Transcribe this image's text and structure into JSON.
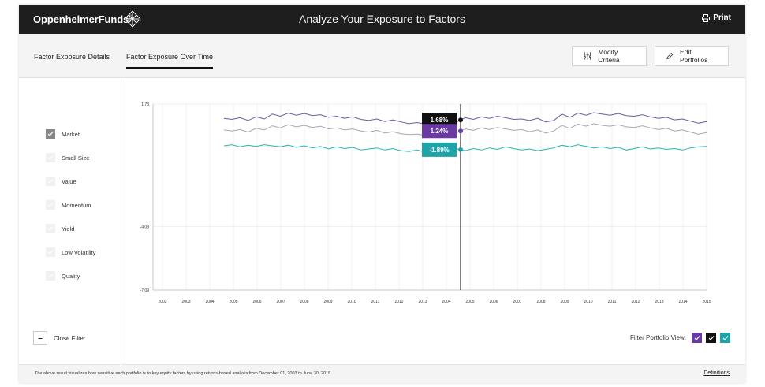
{
  "header": {
    "brand": "OppenheimerFunds",
    "brand_mark": "®",
    "title": "Analyze Your Exposure to Factors",
    "print_label": "Print"
  },
  "tabs": [
    {
      "label": "Factor Exposure Details",
      "active": false
    },
    {
      "label": "Factor Exposure Over Time",
      "active": true
    }
  ],
  "toolbar": {
    "modify_label": "Modify Criteria",
    "edit_label": "Edit Portfolios"
  },
  "factors": [
    {
      "label": "Market",
      "checked": true
    },
    {
      "label": "Small Size",
      "checked": false
    },
    {
      "label": "Value",
      "checked": false
    },
    {
      "label": "Momentum",
      "checked": false
    },
    {
      "label": "Yield",
      "checked": false
    },
    {
      "label": "Low Volatility",
      "checked": false
    },
    {
      "label": "Quality",
      "checked": false
    }
  ],
  "close_filter_label": "Close Filter",
  "filter_view": {
    "label": "Filter Portfolio View:",
    "colors": [
      "#6a3aa2",
      "#111111",
      "#1ea3a8"
    ]
  },
  "footer": {
    "note": "The above result visualizes how sensitive each portfolio is to key equity factors by using returns-based analysis from December 01, 2003 to June 30, 2018.",
    "definitions_label": "Definitions"
  },
  "chart_data": {
    "type": "line",
    "x_ticks": [
      "2002",
      "2003",
      "2004",
      "2005",
      "2006",
      "2007",
      "2008",
      "2009",
      "2010",
      "2011",
      "2012",
      "2013",
      "2004",
      "2005",
      "2006",
      "2007",
      "2008",
      "2009",
      "2010",
      "2011",
      "2012",
      "2013",
      "2014",
      "2015"
    ],
    "y_ticks": [
      1.73,
      -4.09,
      -7.09
    ],
    "ylim": [
      -7.09,
      1.73
    ],
    "grid": true,
    "cursor_index": 12.6,
    "series": [
      {
        "color": "#6c5aa0",
        "flag_color": "#111111",
        "tooltip": "1.68%",
        "start_index": 2.6,
        "values": [
          1.05,
          1.0,
          1.08,
          0.95,
          1.12,
          1.02,
          1.25,
          1.15,
          1.3,
          1.2,
          1.28,
          1.18,
          1.22,
          1.1,
          1.15,
          1.05,
          1.12,
          1.0,
          0.95,
          1.02,
          0.9,
          0.98,
          0.88,
          0.8,
          0.85,
          0.78,
          0.82,
          0.75,
          0.95,
          0.9,
          1.08,
          1.0,
          1.12,
          1.05,
          1.15,
          1.08,
          1.0,
          1.02,
          0.95,
          1.05,
          0.88,
          0.95,
          1.25,
          1.1,
          1.3,
          1.2,
          1.32,
          1.25,
          1.2,
          1.28,
          1.18,
          1.15,
          1.22,
          1.12,
          1.05,
          1.1,
          0.98,
          1.02,
          0.92,
          0.82,
          0.9
        ]
      },
      {
        "color": "#a8a6b4",
        "flag_color": "#6a3aa2",
        "tooltip": "1.24%",
        "start_index": 2.6,
        "values": [
          0.5,
          0.45,
          0.52,
          0.4,
          0.58,
          0.5,
          0.7,
          0.6,
          0.75,
          0.65,
          0.72,
          0.62,
          0.68,
          0.55,
          0.6,
          0.5,
          0.55,
          0.45,
          0.4,
          0.48,
          0.35,
          0.42,
          0.32,
          0.28,
          0.3,
          0.25,
          0.32,
          0.22,
          0.42,
          0.38,
          0.55,
          0.48,
          0.6,
          0.52,
          0.62,
          0.55,
          0.48,
          0.52,
          0.42,
          0.5,
          0.35,
          0.45,
          0.72,
          0.58,
          0.78,
          0.68,
          0.8,
          0.72,
          0.68,
          0.75,
          0.65,
          0.62,
          0.7,
          0.6,
          0.52,
          0.58,
          0.45,
          0.5,
          0.4,
          0.3,
          0.38
        ]
      },
      {
        "color": "#28b3b5",
        "flag_color": "#1ea3a8",
        "tooltip": "-1.89%",
        "start_index": 2.6,
        "values": [
          -0.25,
          -0.2,
          -0.3,
          -0.22,
          -0.28,
          -0.2,
          -0.25,
          -0.3,
          -0.22,
          -0.32,
          -0.25,
          -0.35,
          -0.28,
          -0.4,
          -0.3,
          -0.38,
          -0.32,
          -0.45,
          -0.4,
          -0.35,
          -0.45,
          -0.38,
          -0.48,
          -0.52,
          -0.45,
          -0.55,
          -0.48,
          -0.5,
          -0.45,
          -0.4,
          -0.48,
          -0.38,
          -0.45,
          -0.35,
          -0.42,
          -0.3,
          -0.38,
          -0.45,
          -0.4,
          -0.48,
          -0.42,
          -0.35,
          -0.22,
          -0.3,
          -0.2,
          -0.28,
          -0.35,
          -0.3,
          -0.38,
          -0.32,
          -0.45,
          -0.38,
          -0.3,
          -0.4,
          -0.35,
          -0.42,
          -0.38,
          -0.45,
          -0.35,
          -0.3,
          -0.28
        ]
      }
    ]
  }
}
